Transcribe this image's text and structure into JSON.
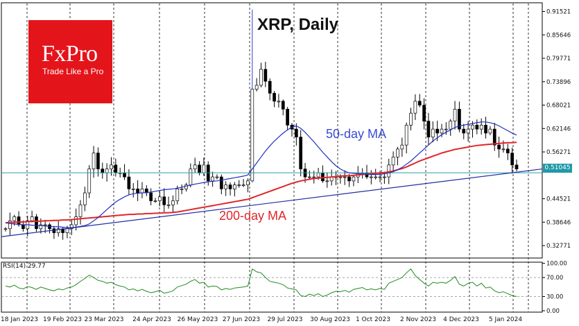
{
  "title": "XRP, Daily",
  "logo": {
    "brand": "FxPro",
    "tagline": "Trade Like a Pro"
  },
  "annotations": {
    "ma50": "50-day MA",
    "ma200": "200-day MA"
  },
  "rsi": {
    "label": "RSI(14) 29.77",
    "levels": [
      "100.00",
      "70.00",
      "30.00",
      "0.00"
    ]
  },
  "current_price": "0.51045",
  "colors": {
    "candles": "#000000",
    "ma50": "#1f2fbf",
    "ma200": "#e0262a",
    "trendline": "#1f2f9f",
    "price_line": "#2a9ea8",
    "rsi_line": "#1f8a1f",
    "logo_bg": "#e4141b"
  },
  "chart_data": {
    "type": "line",
    "title": "XRP, Daily",
    "x_labels": [
      "18 Jan 2023",
      "19 Feb 2023",
      "23 Mar 2023",
      "24 Apr 2023",
      "26 May 2023",
      "27 Jun 2023",
      "29 Jul 2023",
      "30 Aug 2023",
      "1 Oct 2023",
      "2 Nov 2023",
      "4 Dec 2023",
      "5 Jan 2024"
    ],
    "y_ticks": [
      "0.91521",
      "0.85646",
      "0.79771",
      "0.73896",
      "0.68021",
      "0.62146",
      "0.56271",
      "0.44521",
      "0.38646",
      "0.32771"
    ],
    "ylim": [
      0.3,
      0.93
    ],
    "close": [
      0.37,
      0.39,
      0.4,
      0.38,
      0.37,
      0.39,
      0.4,
      0.37,
      0.38,
      0.38,
      0.37,
      0.36,
      0.37,
      0.36,
      0.37,
      0.38,
      0.4,
      0.43,
      0.46,
      0.52,
      0.56,
      0.52,
      0.51,
      0.52,
      0.53,
      0.51,
      0.51,
      0.5,
      0.47,
      0.47,
      0.46,
      0.47,
      0.46,
      0.44,
      0.44,
      0.45,
      0.43,
      0.43,
      0.44,
      0.47,
      0.47,
      0.48,
      0.52,
      0.53,
      0.51,
      0.53,
      0.49,
      0.5,
      0.5,
      0.47,
      0.48,
      0.47,
      0.48,
      0.48,
      0.48,
      0.49,
      0.72,
      0.73,
      0.77,
      0.74,
      0.71,
      0.69,
      0.69,
      0.67,
      0.63,
      0.62,
      0.6,
      0.52,
      0.5,
      0.5,
      0.5,
      0.51,
      0.49,
      0.49,
      0.5,
      0.5,
      0.5,
      0.5,
      0.49,
      0.5,
      0.51,
      0.51,
      0.5,
      0.5,
      0.5,
      0.5,
      0.5,
      0.53,
      0.55,
      0.57,
      0.58,
      0.63,
      0.66,
      0.69,
      0.68,
      0.64,
      0.6,
      0.62,
      0.61,
      0.62,
      0.62,
      0.64,
      0.67,
      0.62,
      0.61,
      0.62,
      0.63,
      0.62,
      0.63,
      0.61,
      0.62,
      0.58,
      0.57,
      0.57,
      0.56,
      0.53,
      0.52
    ],
    "ma50": [
      0.385,
      0.383,
      0.382,
      0.381,
      0.38,
      0.38,
      0.379,
      0.378,
      0.378,
      0.377,
      0.376,
      0.375,
      0.375,
      0.374,
      0.373,
      0.373,
      0.374,
      0.376,
      0.378,
      0.382,
      0.39,
      0.398,
      0.408,
      0.418,
      0.428,
      0.437,
      0.444,
      0.45,
      0.455,
      0.458,
      0.459,
      0.46,
      0.461,
      0.462,
      0.464,
      0.466,
      0.468,
      0.469,
      0.47,
      0.472,
      0.474,
      0.477,
      0.479,
      0.482,
      0.484,
      0.486,
      0.488,
      0.489,
      0.49,
      0.492,
      0.494,
      0.496,
      0.498,
      0.5,
      0.502,
      0.505,
      0.52,
      0.535,
      0.55,
      0.565,
      0.578,
      0.59,
      0.6,
      0.61,
      0.618,
      0.625,
      0.628,
      0.622,
      0.612,
      0.6,
      0.588,
      0.575,
      0.562,
      0.55,
      0.538,
      0.528,
      0.52,
      0.514,
      0.51,
      0.509,
      0.508,
      0.508,
      0.507,
      0.506,
      0.506,
      0.507,
      0.508,
      0.51,
      0.513,
      0.518,
      0.524,
      0.532,
      0.54,
      0.55,
      0.56,
      0.57,
      0.58,
      0.59,
      0.598,
      0.606,
      0.612,
      0.618,
      0.624,
      0.628,
      0.63,
      0.632,
      0.634,
      0.636,
      0.638,
      0.638,
      0.636,
      0.633,
      0.628,
      0.622,
      0.616,
      0.61,
      0.605
    ],
    "ma200": [
      0.385,
      0.386,
      0.386,
      0.387,
      0.387,
      0.388,
      0.388,
      0.389,
      0.389,
      0.39,
      0.39,
      0.391,
      0.391,
      0.392,
      0.392,
      0.393,
      0.394,
      0.395,
      0.396,
      0.397,
      0.398,
      0.399,
      0.4,
      0.401,
      0.402,
      0.403,
      0.404,
      0.405,
      0.406,
      0.406,
      0.407,
      0.407,
      0.408,
      0.408,
      0.409,
      0.409,
      0.41,
      0.41,
      0.411,
      0.412,
      0.414,
      0.416,
      0.418,
      0.42,
      0.422,
      0.424,
      0.426,
      0.428,
      0.43,
      0.432,
      0.434,
      0.436,
      0.438,
      0.44,
      0.442,
      0.444,
      0.448,
      0.452,
      0.456,
      0.46,
      0.464,
      0.468,
      0.472,
      0.476,
      0.48,
      0.484,
      0.487,
      0.49,
      0.492,
      0.494,
      0.496,
      0.497,
      0.498,
      0.499,
      0.5,
      0.501,
      0.502,
      0.503,
      0.503,
      0.504,
      0.505,
      0.506,
      0.507,
      0.508,
      0.509,
      0.51,
      0.511,
      0.513,
      0.515,
      0.518,
      0.521,
      0.525,
      0.53,
      0.535,
      0.54,
      0.544,
      0.548,
      0.552,
      0.556,
      0.56,
      0.563,
      0.566,
      0.569,
      0.571,
      0.573,
      0.575,
      0.577,
      0.579,
      0.58,
      0.581,
      0.582,
      0.583,
      0.584,
      0.585,
      0.586,
      0.586,
      0.587
    ],
    "trendline": {
      "start": 0.35,
      "end": 0.52
    },
    "current_price_level": 0.51045,
    "rsi_values": [
      52,
      50,
      54,
      48,
      46,
      51,
      49,
      45,
      50,
      47,
      44,
      42,
      46,
      44,
      48,
      50,
      55,
      62,
      68,
      75,
      70,
      64,
      62,
      58,
      60,
      55,
      52,
      50,
      44,
      46,
      42,
      45,
      41,
      38,
      40,
      43,
      37,
      39,
      42,
      50,
      53,
      56,
      62,
      66,
      58,
      60,
      50,
      52,
      51,
      44,
      47,
      45,
      48,
      49,
      50,
      52,
      88,
      82,
      80,
      70,
      62,
      60,
      58,
      55,
      48,
      46,
      44,
      32,
      30,
      35,
      32,
      36,
      30,
      33,
      38,
      41,
      40,
      43,
      39,
      45,
      47,
      49,
      44,
      46,
      44,
      47,
      45,
      58,
      62,
      66,
      70,
      80,
      88,
      74,
      66,
      58,
      52,
      60,
      58,
      60,
      58,
      64,
      72,
      56,
      52,
      58,
      60,
      52,
      58,
      48,
      50,
      42,
      38,
      40,
      36,
      32,
      30
    ]
  }
}
